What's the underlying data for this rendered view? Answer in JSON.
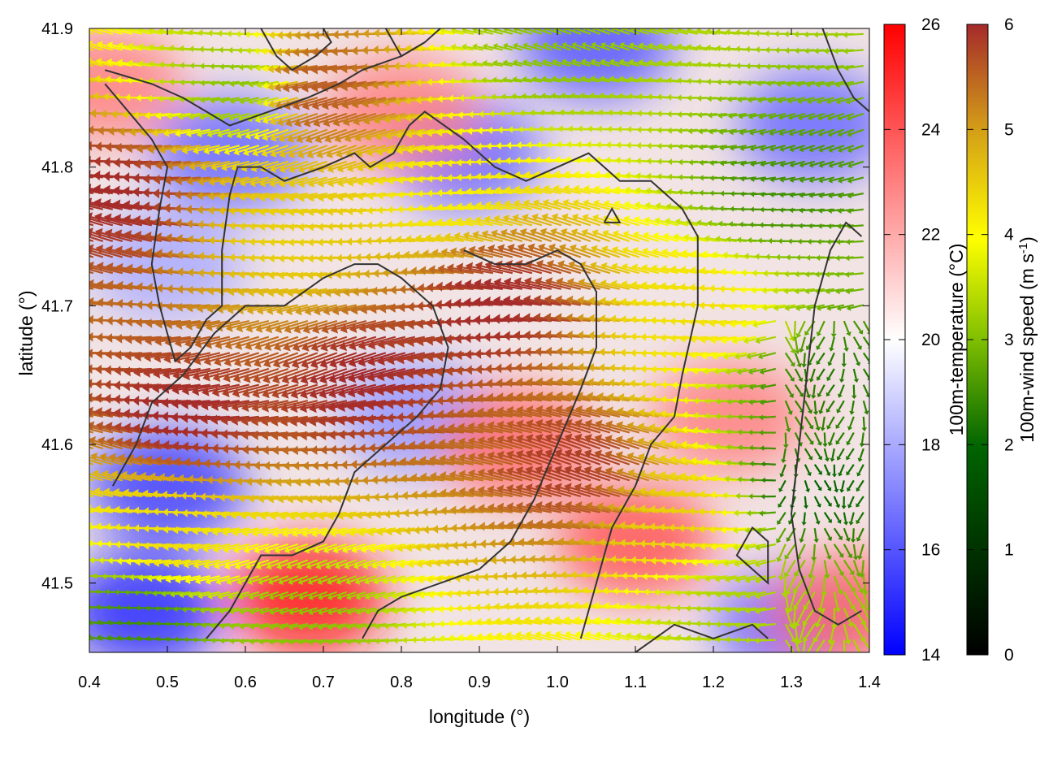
{
  "chart_data": {
    "type": "heatmap",
    "title": "",
    "xlabel": "longitude (°)",
    "ylabel": "latitude (°)",
    "xlim": [
      0.4,
      1.4
    ],
    "ylim": [
      41.45,
      41.9
    ],
    "x_ticks": [
      "0.4",
      "0.5",
      "0.6",
      "0.7",
      "0.8",
      "0.9",
      "1.0",
      "1.1",
      "1.2",
      "1.3",
      "1.4"
    ],
    "y_ticks": [
      "41.5",
      "41.6",
      "41.7",
      "41.8",
      "41.9"
    ],
    "temperature_colorbar": {
      "label": "100m-temperature (°C)",
      "range": [
        14,
        26
      ],
      "ticks": [
        "14",
        "16",
        "18",
        "20",
        "22",
        "24",
        "26"
      ],
      "colors": [
        "#0000ff",
        "#ffffff",
        "#ff0000"
      ]
    },
    "wind_colorbar": {
      "label_main": "100m-wind speed (m s",
      "label_sup": "-1",
      "label_end": ")",
      "range": [
        0,
        6
      ],
      "ticks": [
        "0",
        "1",
        "2",
        "3",
        "4",
        "5",
        "6"
      ],
      "colors": [
        "#000000",
        "#006400",
        "#7fbf00",
        "#ffff00",
        "#d4a017",
        "#a52a2a"
      ]
    },
    "temperature_anomalies": [
      {
        "lon": 0.5,
        "lat": 41.57,
        "t": 15.5
      },
      {
        "lon": 0.47,
        "lat": 41.48,
        "t": 15.0
      },
      {
        "lon": 0.58,
        "lat": 41.81,
        "t": 16.5
      },
      {
        "lon": 0.82,
        "lat": 41.62,
        "t": 17.5
      },
      {
        "lon": 0.88,
        "lat": 41.81,
        "t": 16.5
      },
      {
        "lon": 1.05,
        "lat": 41.89,
        "t": 16.0
      },
      {
        "lon": 1.33,
        "lat": 41.83,
        "t": 16.5
      },
      {
        "lon": 1.3,
        "lat": 41.47,
        "t": 16.5
      },
      {
        "lon": 0.5,
        "lat": 41.73,
        "t": 18.0
      },
      {
        "lon": 0.68,
        "lat": 41.49,
        "t": 25.5
      },
      {
        "lon": 0.95,
        "lat": 41.6,
        "t": 23.5
      },
      {
        "lon": 1.1,
        "lat": 41.53,
        "t": 24.0
      },
      {
        "lon": 0.8,
        "lat": 41.84,
        "t": 23.0
      },
      {
        "lon": 1.22,
        "lat": 41.62,
        "t": 23.0
      },
      {
        "lon": 0.42,
        "lat": 41.86,
        "t": 23.0
      },
      {
        "lon": 1.37,
        "lat": 41.48,
        "t": 23.5
      }
    ],
    "wind_regions": [
      {
        "lon": 0.78,
        "lat": 41.65,
        "speed": 6.0
      },
      {
        "lon": 0.95,
        "lat": 41.7,
        "speed": 6.0
      },
      {
        "lon": 1.05,
        "lat": 41.58,
        "speed": 5.8
      },
      {
        "lon": 0.55,
        "lat": 41.62,
        "speed": 6.0
      },
      {
        "lon": 0.47,
        "lat": 41.78,
        "speed": 6.0
      },
      {
        "lon": 0.72,
        "lat": 41.86,
        "speed": 5.5
      },
      {
        "lon": 0.68,
        "lat": 41.75,
        "speed": 4.2
      },
      {
        "lon": 0.88,
        "lat": 41.78,
        "speed": 3.8
      },
      {
        "lon": 0.53,
        "lat": 41.53,
        "speed": 4.0
      },
      {
        "lon": 1.2,
        "lat": 41.7,
        "speed": 4.0
      },
      {
        "lon": 1.18,
        "lat": 41.55,
        "speed": 4.2
      },
      {
        "lon": 1.0,
        "lat": 41.88,
        "speed": 2.5
      },
      {
        "lon": 1.3,
        "lat": 41.78,
        "speed": 1.8
      },
      {
        "lon": 1.33,
        "lat": 41.57,
        "speed": 1.2
      },
      {
        "lon": 1.35,
        "lat": 41.65,
        "speed": 1.5
      },
      {
        "lon": 0.48,
        "lat": 41.47,
        "speed": 1.8
      },
      {
        "lon": 0.68,
        "lat": 41.47,
        "speed": 2.5
      },
      {
        "lon": 1.25,
        "lat": 41.48,
        "speed": 2.8
      },
      {
        "lon": 0.6,
        "lat": 41.86,
        "speed": 2.5
      }
    ],
    "contour_lines": [
      [
        [
          0.42,
          41.87
        ],
        [
          0.48,
          41.86
        ],
        [
          0.52,
          41.85
        ],
        [
          0.55,
          41.84
        ],
        [
          0.58,
          41.83
        ],
        [
          0.63,
          41.84
        ],
        [
          0.68,
          41.85
        ],
        [
          0.72,
          41.86
        ],
        [
          0.75,
          41.87
        ],
        [
          0.8,
          41.88
        ],
        [
          0.83,
          41.89
        ]
      ],
      [
        [
          0.62,
          41.9
        ],
        [
          0.64,
          41.88
        ],
        [
          0.66,
          41.87
        ],
        [
          0.69,
          41.88
        ],
        [
          0.71,
          41.89
        ],
        [
          0.7,
          41.9
        ]
      ],
      [
        [
          0.78,
          41.9
        ],
        [
          0.8,
          41.88
        ],
        [
          0.83,
          41.89
        ],
        [
          0.85,
          41.9
        ]
      ],
      [
        [
          0.42,
          41.86
        ],
        [
          0.45,
          41.84
        ],
        [
          0.48,
          41.82
        ],
        [
          0.5,
          41.8
        ],
        [
          0.49,
          41.77
        ],
        [
          0.48,
          41.73
        ],
        [
          0.49,
          41.7
        ],
        [
          0.51,
          41.66
        ],
        [
          0.53,
          41.67
        ],
        [
          0.55,
          41.69
        ],
        [
          0.57,
          41.7
        ],
        [
          0.57,
          41.74
        ],
        [
          0.58,
          41.78
        ],
        [
          0.59,
          41.8
        ],
        [
          0.62,
          41.8
        ],
        [
          0.65,
          41.79
        ],
        [
          0.7,
          41.8
        ],
        [
          0.74,
          41.81
        ],
        [
          0.76,
          41.8
        ],
        [
          0.79,
          41.81
        ],
        [
          0.81,
          41.83
        ],
        [
          0.83,
          41.84
        ],
        [
          0.88,
          41.82
        ],
        [
          0.92,
          41.8
        ],
        [
          0.96,
          41.79
        ],
        [
          1.0,
          41.8
        ],
        [
          1.04,
          41.81
        ],
        [
          1.08,
          41.79
        ],
        [
          1.12,
          41.79
        ],
        [
          1.16,
          41.77
        ],
        [
          1.18,
          41.75
        ],
        [
          1.18,
          41.7
        ],
        [
          1.16,
          41.65
        ],
        [
          1.15,
          41.62
        ],
        [
          1.12,
          41.6
        ],
        [
          1.1,
          41.57
        ],
        [
          1.07,
          41.54
        ],
        [
          1.05,
          41.5
        ],
        [
          1.03,
          41.46
        ]
      ],
      [
        [
          0.43,
          41.57
        ],
        [
          0.46,
          41.6
        ],
        [
          0.48,
          41.63
        ],
        [
          0.52,
          41.65
        ],
        [
          0.56,
          41.68
        ],
        [
          0.6,
          41.7
        ],
        [
          0.65,
          41.7
        ],
        [
          0.7,
          41.72
        ],
        [
          0.74,
          41.73
        ],
        [
          0.77,
          41.73
        ],
        [
          0.8,
          41.72
        ],
        [
          0.84,
          41.7
        ],
        [
          0.86,
          41.67
        ],
        [
          0.85,
          41.64
        ],
        [
          0.82,
          41.62
        ],
        [
          0.78,
          41.6
        ],
        [
          0.74,
          41.58
        ],
        [
          0.72,
          41.55
        ],
        [
          0.7,
          41.53
        ],
        [
          0.66,
          41.52
        ],
        [
          0.62,
          41.52
        ],
        [
          0.6,
          41.5
        ],
        [
          0.58,
          41.48
        ],
        [
          0.55,
          41.46
        ]
      ],
      [
        [
          0.88,
          41.74
        ],
        [
          0.92,
          41.73
        ],
        [
          0.96,
          41.73
        ],
        [
          1.0,
          41.74
        ],
        [
          1.03,
          41.73
        ],
        [
          1.05,
          41.71
        ],
        [
          1.05,
          41.67
        ],
        [
          1.03,
          41.64
        ],
        [
          1.0,
          41.6
        ],
        [
          0.97,
          41.56
        ],
        [
          0.94,
          41.53
        ],
        [
          0.9,
          41.51
        ],
        [
          0.85,
          41.5
        ],
        [
          0.8,
          41.49
        ],
        [
          0.77,
          41.48
        ],
        [
          0.75,
          41.46
        ]
      ],
      [
        [
          1.1,
          41.45
        ],
        [
          1.15,
          41.47
        ],
        [
          1.2,
          41.46
        ],
        [
          1.25,
          41.47
        ],
        [
          1.27,
          41.46
        ]
      ],
      [
        [
          1.25,
          41.51
        ],
        [
          1.27,
          41.5
        ],
        [
          1.27,
          41.53
        ],
        [
          1.25,
          41.54
        ],
        [
          1.23,
          41.52
        ],
        [
          1.25,
          41.51
        ]
      ],
      [
        [
          1.06,
          41.76
        ],
        [
          1.08,
          41.76
        ],
        [
          1.07,
          41.77
        ],
        [
          1.06,
          41.76
        ]
      ],
      [
        [
          1.39,
          41.75
        ],
        [
          1.37,
          41.76
        ],
        [
          1.35,
          41.74
        ],
        [
          1.33,
          41.7
        ],
        [
          1.32,
          41.65
        ],
        [
          1.31,
          41.6
        ],
        [
          1.3,
          41.55
        ],
        [
          1.31,
          41.51
        ],
        [
          1.33,
          41.48
        ],
        [
          1.36,
          41.47
        ],
        [
          1.39,
          41.48
        ]
      ],
      [
        [
          1.34,
          41.9
        ],
        [
          1.36,
          41.87
        ],
        [
          1.38,
          41.85
        ],
        [
          1.4,
          41.84
        ]
      ]
    ]
  }
}
